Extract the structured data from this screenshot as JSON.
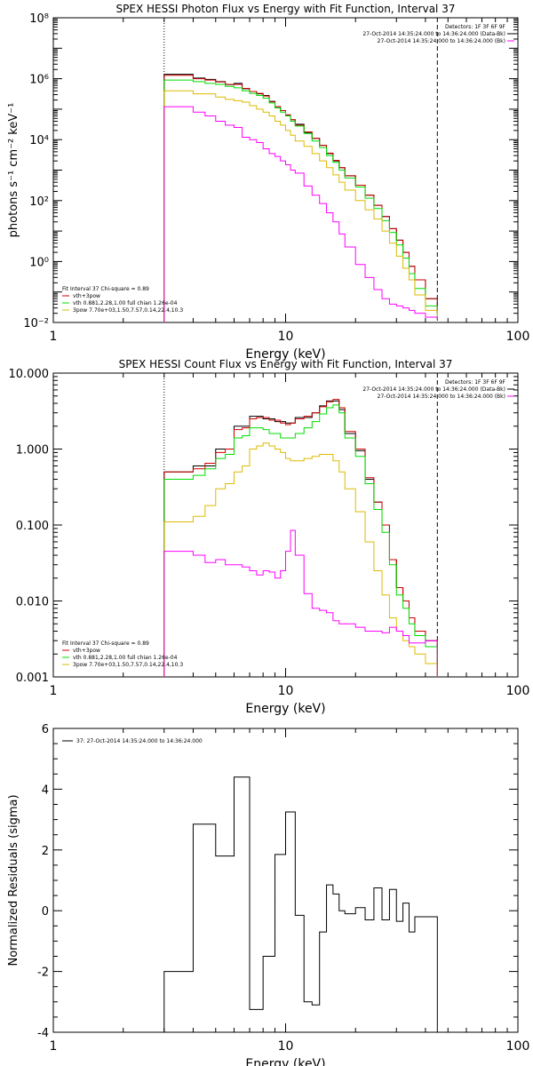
{
  "chart_data": [
    {
      "type": "line",
      "title": "SPEX HESSI Photon Flux vs Energy with Fit Function, Interval 37",
      "xlabel": "Energy (keV)",
      "ylabel": "photons s⁻¹ cm⁻² keV⁻¹",
      "xscale": "log",
      "yscale": "log",
      "xlim": [
        1,
        100
      ],
      "ylim": [
        0.01,
        100000000
      ],
      "x_tick_labels": [
        "1",
        "10",
        "100"
      ],
      "y_tick_labels": [
        "10⁻²",
        "10⁰",
        "10²",
        "10⁴",
        "10⁶",
        "10⁸"
      ],
      "y_tick_values": [
        0.01,
        1,
        100,
        10000,
        1000000,
        100000000
      ],
      "vertical_lines": [
        {
          "x": 3.0,
          "style": "dotted"
        },
        {
          "x": 45,
          "style": "dashed"
        }
      ],
      "legend_top_right": [
        "Detectors: 1F 3F 6F 9F",
        "27-Oct-2014 14:35:24.000 to 14:36:24.000 (Data-Bk)",
        "27-Oct-2014 14:35:24.000 to 14:36:24.000 (Bk)"
      ],
      "legend_top_right_colors": [
        "#000000",
        "#000000",
        "#ff00ff"
      ],
      "legend_bottom_left": [
        "Fit Interval 37    Chi-square = 0.89",
        "vth+3pow",
        "vth 0.881,2.28,1.00  full chian 1.26e-04",
        "3pow 7.70e+03,1.50,7.57,0.14,22.4,10.3"
      ],
      "legend_bottom_left_colors": [
        "#000000",
        "#cc0000",
        "#00dd00",
        "#ddbb00"
      ],
      "bin_edges": [
        3.0,
        3.5,
        4.0,
        4.5,
        5.0,
        5.5,
        6.0,
        6.5,
        7.0,
        7.5,
        8.0,
        8.5,
        9.0,
        9.5,
        10.0,
        10.5,
        11.0,
        12.0,
        13.0,
        14.0,
        15.0,
        16.0,
        17.0,
        18.0,
        20.0,
        22.0,
        24.0,
        26.0,
        28.0,
        30.0,
        32.0,
        34.0,
        36.0,
        40.0,
        45.0
      ],
      "series": [
        {
          "name": "Data-Bk",
          "color": "#000000",
          "values": [
            1400000,
            1400000,
            1050000,
            950000,
            800000,
            640000,
            700000,
            470000,
            380000,
            320000,
            280000,
            180000,
            120000,
            90000,
            65000,
            45000,
            32000,
            17000,
            11000,
            6500,
            3500,
            2000,
            1200,
            650,
            320,
            150,
            70,
            30,
            12,
            5,
            2,
            0.7,
            0.25,
            0.06,
            0.02
          ]
        },
        {
          "name": "vth+3pow",
          "color": "#cc0000",
          "values": [
            1300000,
            1300000,
            1000000,
            900000,
            780000,
            650000,
            650000,
            480000,
            380000,
            330000,
            270000,
            175000,
            120000,
            90000,
            65000,
            45000,
            30000,
            18000,
            11000,
            6500,
            3600,
            2100,
            1200,
            650,
            320,
            150,
            70,
            30,
            12,
            5,
            2,
            0.7,
            0.25,
            0.06,
            0.02
          ]
        },
        {
          "name": "vth",
          "color": "#00dd00",
          "values": [
            900000,
            900000,
            800000,
            700000,
            650000,
            560000,
            500000,
            400000,
            330000,
            280000,
            230000,
            160000,
            110000,
            80000,
            60000,
            40000,
            28000,
            16000,
            9000,
            5500,
            3000,
            1800,
            1000,
            550,
            280,
            120,
            55,
            22,
            9,
            3.5,
            1.3,
            0.4,
            0.13,
            0.035,
            0.012
          ]
        },
        {
          "name": "3pow",
          "color": "#ddbb00",
          "values": [
            400000,
            400000,
            320000,
            320000,
            250000,
            210000,
            190000,
            170000,
            130000,
            100000,
            80000,
            60000,
            40000,
            30000,
            20000,
            14000,
            9000,
            6000,
            3500,
            2000,
            1200,
            700,
            400,
            220,
            100,
            50,
            25,
            10,
            4,
            1.5,
            0.6,
            0.25,
            0.08,
            0.025,
            0.015
          ]
        },
        {
          "name": "Bk",
          "color": "#ff00ff",
          "values": [
            120000,
            120000,
            80000,
            60000,
            40000,
            30000,
            25000,
            12000,
            10000,
            8000,
            5000,
            3500,
            2800,
            2000,
            1500,
            1000,
            800,
            300,
            150,
            80,
            40,
            20,
            8,
            3,
            0.8,
            0.3,
            0.12,
            0.06,
            0.04,
            0.035,
            0.03,
            0.025,
            0.02,
            0.015,
            0.012
          ]
        }
      ]
    },
    {
      "type": "line",
      "title": "SPEX HESSI Count Flux vs Energy with Fit Function, Interval 37",
      "xlabel": "Energy (keV)",
      "ylabel": "",
      "xscale": "log",
      "yscale": "log",
      "xlim": [
        1,
        100
      ],
      "ylim": [
        0.001,
        10
      ],
      "x_tick_labels": [
        "1",
        "10",
        "100"
      ],
      "y_tick_labels": [
        "0.001",
        "0.010",
        "0.100",
        "1.000",
        "10.000"
      ],
      "y_tick_values": [
        0.001,
        0.01,
        0.1,
        1,
        10
      ],
      "vertical_lines": [
        {
          "x": 3.0,
          "style": "dotted"
        },
        {
          "x": 45,
          "style": "dashed"
        }
      ],
      "legend_top_right": [
        "Detectors: 1F 3F 6F 9F",
        "27-Oct-2014 14:35:24.000 to 14:36:24.000 (Data-Bk)",
        "27-Oct-2014 14:35:24.000 to 14:36:24.000 (Bk)"
      ],
      "legend_top_right_colors": [
        "#000000",
        "#000000",
        "#ff00ff"
      ],
      "legend_bottom_left": [
        "Fit Interval 37    Chi-square = 0.89",
        "vth+3pow",
        "vth 0.881,2.28,1.00  full chian 1.26e-04",
        "3pow 7.70e+03,1.50,7.57,0.14,22.4,10.3"
      ],
      "legend_bottom_left_colors": [
        "#000000",
        "#cc0000",
        "#00dd00",
        "#ddbb00"
      ],
      "bin_edges": [
        3.0,
        3.5,
        4.0,
        4.5,
        5.0,
        5.5,
        6.0,
        6.5,
        7.0,
        7.5,
        8.0,
        8.5,
        9.0,
        9.5,
        10.0,
        10.5,
        11.0,
        12.0,
        13.0,
        14.0,
        15.0,
        16.0,
        17.0,
        18.0,
        20.0,
        22.0,
        24.0,
        26.0,
        28.0,
        30.0,
        32.0,
        34.0,
        36.0,
        40.0,
        45.0
      ],
      "series": [
        {
          "name": "Data-Bk",
          "color": "#000000",
          "values": [
            0.5,
            0.5,
            0.6,
            0.6,
            1.0,
            1.0,
            2.0,
            2.0,
            2.7,
            2.7,
            2.5,
            2.5,
            2.3,
            2.3,
            2.2,
            2.2,
            2.6,
            2.6,
            3.0,
            3.7,
            4.3,
            4.3,
            3.3,
            1.6,
            0.95,
            0.4,
            0.2,
            0.1,
            0.035,
            0.015,
            0.01,
            0.006,
            0.004,
            0.003,
            0.001
          ]
        },
        {
          "name": "vth+3pow",
          "color": "#cc0000",
          "values": [
            0.5,
            0.5,
            0.55,
            0.65,
            0.9,
            1.0,
            1.8,
            1.9,
            2.5,
            2.6,
            2.6,
            2.4,
            2.4,
            2.2,
            2.1,
            2.2,
            2.5,
            2.7,
            3.0,
            3.6,
            4.2,
            4.5,
            3.5,
            1.7,
            1.0,
            0.42,
            0.2,
            0.1,
            0.035,
            0.015,
            0.01,
            0.006,
            0.004,
            0.003,
            0.001
          ]
        },
        {
          "name": "vth",
          "color": "#00dd00",
          "values": [
            0.4,
            0.4,
            0.45,
            0.55,
            0.75,
            0.85,
            1.4,
            1.5,
            1.9,
            1.9,
            1.8,
            1.6,
            1.6,
            1.4,
            1.4,
            1.4,
            1.6,
            1.9,
            2.3,
            2.9,
            3.5,
            3.8,
            3.0,
            1.4,
            0.8,
            0.35,
            0.16,
            0.08,
            0.03,
            0.012,
            0.008,
            0.005,
            0.0035,
            0.0025,
            0.001
          ]
        },
        {
          "name": "3pow",
          "color": "#ddbb00",
          "values": [
            0.11,
            0.11,
            0.13,
            0.18,
            0.3,
            0.35,
            0.5,
            0.6,
            1.0,
            1.1,
            1.2,
            1.1,
            1.0,
            0.9,
            0.75,
            0.7,
            0.7,
            0.75,
            0.8,
            0.85,
            0.85,
            0.7,
            0.5,
            0.3,
            0.15,
            0.06,
            0.025,
            0.012,
            0.006,
            0.004,
            0.003,
            0.0025,
            0.002,
            0.0015,
            0.001
          ]
        },
        {
          "name": "Bk",
          "color": "#ff00ff",
          "values": [
            0.045,
            0.045,
            0.04,
            0.032,
            0.035,
            0.03,
            0.03,
            0.028,
            0.025,
            0.022,
            0.025,
            0.024,
            0.02,
            0.025,
            0.045,
            0.085,
            0.04,
            0.0125,
            0.008,
            0.0075,
            0.007,
            0.0055,
            0.005,
            0.005,
            0.0045,
            0.004,
            0.004,
            0.0038,
            0.0045,
            0.004,
            0.0035,
            0.0028,
            0.0028,
            0.003,
            0.001
          ]
        }
      ]
    },
    {
      "type": "line",
      "title": "",
      "xlabel": "Energy (keV)",
      "ylabel": "Normalized Residuals (sigma)",
      "xscale": "log",
      "yscale": "linear",
      "xlim": [
        1,
        100
      ],
      "ylim": [
        -4,
        6
      ],
      "x_tick_labels": [
        "1",
        "10",
        "100"
      ],
      "y_tick_labels": [
        "-4",
        "-2",
        "0",
        "2",
        "4",
        "6"
      ],
      "y_tick_values": [
        -4,
        -2,
        0,
        2,
        4,
        6
      ],
      "legend_top_left": [
        "37: 27-Oct-2014 14:35:24.000 to 14:36:24.000"
      ],
      "bin_edges": [
        3.0,
        3.5,
        4.0,
        4.5,
        5.0,
        5.5,
        6.0,
        6.5,
        7.0,
        7.5,
        8.0,
        8.5,
        9.0,
        9.5,
        10.0,
        10.5,
        11.0,
        12.0,
        13.0,
        14.0,
        15.0,
        16.0,
        17.0,
        18.0,
        20.0,
        22.0,
        24.0,
        26.0,
        28.0,
        30.0,
        32.0,
        34.0,
        36.0,
        40.0,
        45.0
      ],
      "series": [
        {
          "name": "",
          "color": "#000000",
          "values": [
            -2.0,
            -2.0,
            2.85,
            2.85,
            1.8,
            1.8,
            4.4,
            4.4,
            -3.25,
            -3.25,
            -1.5,
            -1.5,
            1.85,
            1.85,
            3.25,
            3.25,
            -0.15,
            -3.0,
            -3.1,
            -0.7,
            0.85,
            0.55,
            0.0,
            -0.1,
            0.1,
            -0.3,
            0.75,
            -0.3,
            0.7,
            -0.35,
            0.25,
            -0.7,
            -0.2,
            -0.2
          ]
        }
      ]
    }
  ]
}
